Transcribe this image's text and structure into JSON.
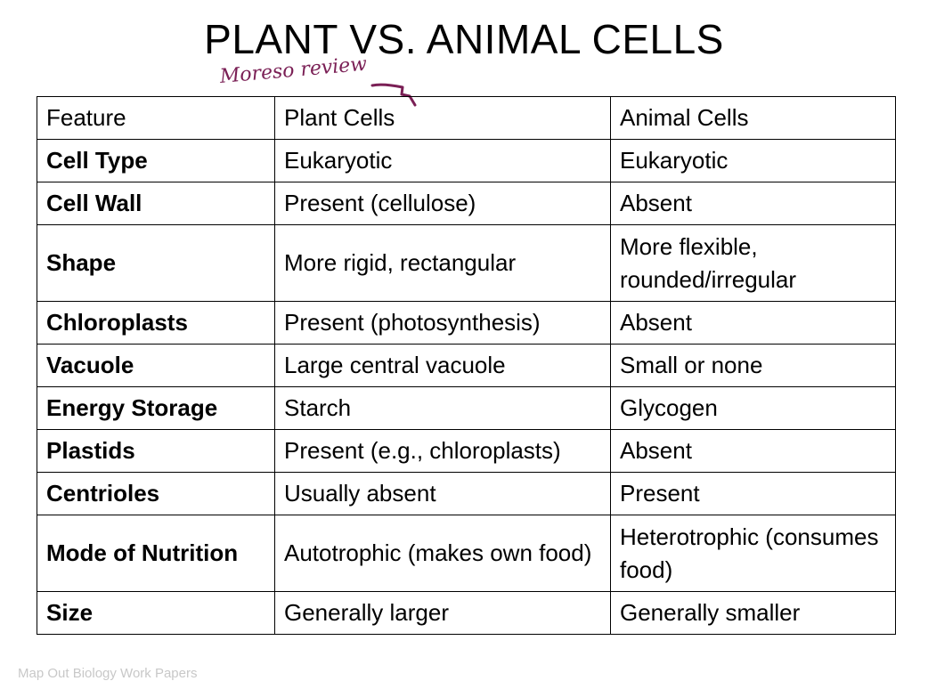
{
  "title": "PLANT VS. ANIMAL CELLS",
  "annotation": {
    "text": "Moreso review",
    "color": "#7a1f55"
  },
  "table": {
    "headers": [
      "Feature",
      "Plant Cells",
      "Animal Cells"
    ],
    "rows": [
      {
        "feature": "Cell Type",
        "plant": "Eukaryotic",
        "animal": "Eukaryotic"
      },
      {
        "feature": "Cell Wall",
        "plant": "Present (cellulose)",
        "animal": "Absent"
      },
      {
        "feature": "Shape",
        "plant": "More rigid, rectangular",
        "animal": "More flexible, rounded/irregular"
      },
      {
        "feature": "Chloroplasts",
        "plant": "Present (photosynthesis)",
        "animal": "Absent"
      },
      {
        "feature": "Vacuole",
        "plant": "Large central vacuole",
        "animal": "Small or none"
      },
      {
        "feature": "Energy Storage",
        "plant": "Starch",
        "animal": "Glycogen"
      },
      {
        "feature": "Plastids",
        "plant": "Present (e.g., chloroplasts)",
        "animal": "Absent"
      },
      {
        "feature": "Centrioles",
        "plant": "Usually absent",
        "animal": "Present"
      },
      {
        "feature": "Mode of Nutrition",
        "plant": "Autotrophic (makes own food)",
        "animal": "Heterotrophic (consumes food)"
      },
      {
        "feature": "Size",
        "plant": "Generally larger",
        "animal": "Generally smaller"
      }
    ]
  },
  "footer": "Map Out Biology Work Papers"
}
